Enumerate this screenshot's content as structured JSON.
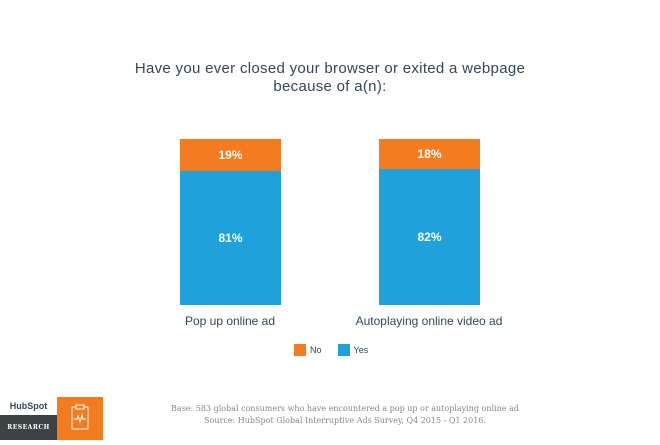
{
  "chart_data": {
    "type": "bar",
    "stacked": true,
    "title": "Have you ever closed your browser or exited a webpage because of a(n):",
    "title_lines": [
      "Have you ever closed your browser or exited a webpage",
      "because of a(n):"
    ],
    "categories": [
      "Pop up online ad",
      "Autoplaying online video ad"
    ],
    "series": [
      {
        "name": "Yes",
        "values": [
          81,
          82
        ],
        "labels": [
          "81%",
          "82%"
        ],
        "color": "#1fa1dc"
      },
      {
        "name": "No",
        "values": [
          19,
          18
        ],
        "labels": [
          "19%",
          "18%"
        ],
        "color": "#f47b20"
      }
    ],
    "ylim": [
      0,
      100
    ],
    "legend": [
      "No",
      "Yes"
    ],
    "legend_position": "bottom"
  },
  "footer": {
    "base": "Base: 583 global consumers who have encountered a pop up or autoplaying online ad",
    "source": "Source: HubSpot Global Interruptive Ads Survey, Q4 2015 - Q1 2016."
  },
  "brand": {
    "logo": "HubSpot",
    "label": "RESEARCH",
    "accent": "#f47b20"
  }
}
